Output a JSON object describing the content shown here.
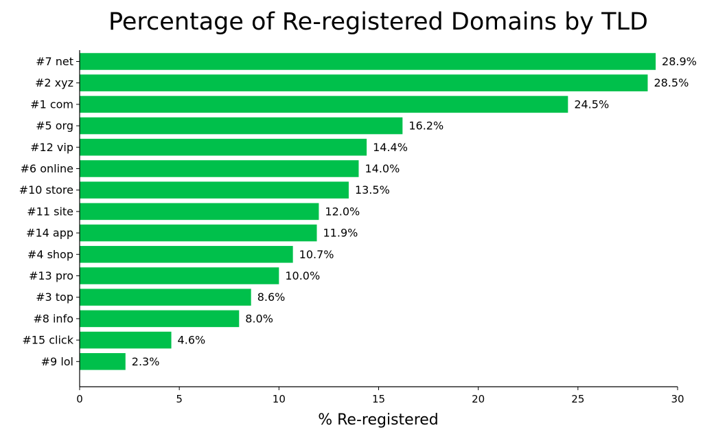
{
  "chart_data": {
    "type": "bar",
    "orientation": "horizontal",
    "title": "Percentage of Re-registered Domains by TLD",
    "xlabel": "% Re-registered",
    "ylabel": "",
    "xlim": [
      0,
      30
    ],
    "xticks": [
      0,
      5,
      10,
      15,
      20,
      25,
      30
    ],
    "grid": false,
    "legend": "none",
    "bar_color": "#00c04b",
    "categories": [
      "#7 net",
      "#2 xyz",
      "#1 com",
      "#5 org",
      "#12 vip",
      "#6 online",
      "#10 store",
      "#11 site",
      "#14 app",
      "#4 shop",
      "#13 pro",
      "#3 top",
      "#8 info",
      "#15 click",
      "#9 lol"
    ],
    "values": [
      28.9,
      28.5,
      24.5,
      16.2,
      14.4,
      14.0,
      13.5,
      12.0,
      11.9,
      10.7,
      10.0,
      8.6,
      8.0,
      4.6,
      2.3
    ],
    "value_labels": [
      "28.9%",
      "28.5%",
      "24.5%",
      "16.2%",
      "14.4%",
      "14.0%",
      "13.5%",
      "12.0%",
      "11.9%",
      "10.7%",
      "10.0%",
      "8.6%",
      "8.0%",
      "4.6%",
      "2.3%"
    ]
  }
}
